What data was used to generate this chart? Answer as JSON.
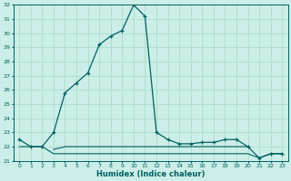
{
  "title": "",
  "xlabel": "Humidex (Indice chaleur)",
  "ylabel": "",
  "bg_color": "#cceee8",
  "line_color": "#006060",
  "grid_color": "#aaddcc",
  "series1_x": [
    0,
    1,
    2,
    3,
    4,
    5,
    6,
    7,
    8,
    9,
    10,
    11,
    12,
    13,
    14,
    15,
    16,
    17,
    18,
    19,
    20,
    21,
    22,
    23
  ],
  "series1_y": [
    22.5,
    22.0,
    22.0,
    23.0,
    25.8,
    26.5,
    27.2,
    29.2,
    29.8,
    30.2,
    32.0,
    31.2,
    23.0,
    22.5,
    22.2,
    22.2,
    22.3,
    22.3,
    22.5,
    22.5,
    22.0,
    21.2,
    21.5,
    21.5
  ],
  "series2_x": [
    0,
    1,
    2,
    3,
    4,
    5,
    6,
    7,
    8,
    9,
    10,
    11,
    12,
    13,
    14,
    15,
    16,
    17,
    18,
    19,
    20,
    21,
    22,
    23
  ],
  "series2_y": [
    22.0,
    22.0,
    22.0,
    21.5,
    21.5,
    21.5,
    21.5,
    21.5,
    21.5,
    21.5,
    21.5,
    21.5,
    21.5,
    21.5,
    21.5,
    21.5,
    21.5,
    21.5,
    21.5,
    21.5,
    21.5,
    21.2,
    21.5,
    21.5
  ],
  "series3_x": [
    3,
    4,
    5,
    6,
    7,
    8,
    9,
    10,
    11,
    12,
    13,
    14,
    15,
    16,
    17,
    18,
    19,
    20
  ],
  "series3_y": [
    21.8,
    22.0,
    22.0,
    22.0,
    22.0,
    22.0,
    22.0,
    22.0,
    22.0,
    22.0,
    22.0,
    22.0,
    22.0,
    22.0,
    22.0,
    22.0,
    22.0,
    22.0
  ],
  "ylim": [
    21,
    32
  ],
  "xlim": [
    -0.5,
    23.5
  ],
  "yticks": [
    21,
    22,
    23,
    24,
    25,
    26,
    27,
    28,
    29,
    30,
    31,
    32
  ],
  "xticks": [
    0,
    1,
    2,
    3,
    4,
    5,
    6,
    7,
    8,
    9,
    10,
    11,
    12,
    13,
    14,
    15,
    16,
    17,
    18,
    19,
    20,
    21,
    22,
    23
  ]
}
